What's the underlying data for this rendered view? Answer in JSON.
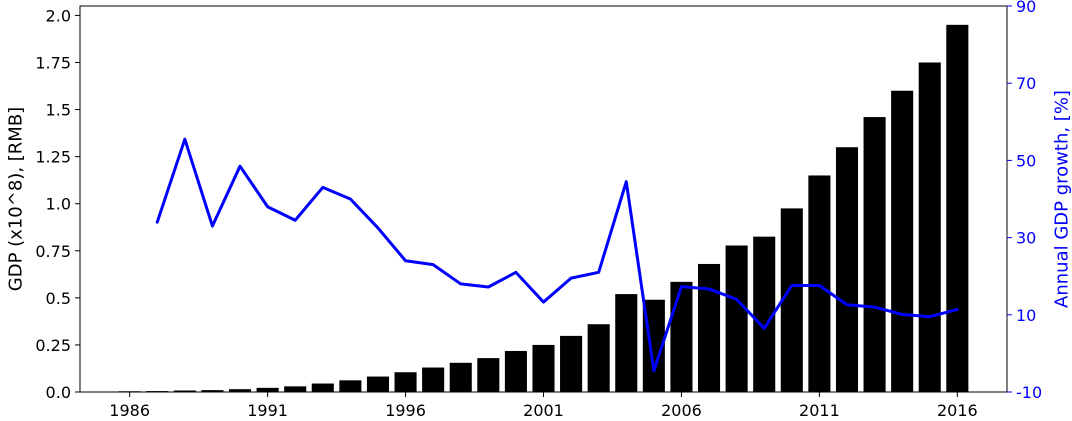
{
  "chart_data": {
    "type": "bar",
    "colors": {
      "bars": "#000000",
      "line": "#0000ff",
      "right_axis": "#0000ff",
      "left_axis": "#000000"
    },
    "xlabel": "",
    "x_ticks": [
      1986,
      1991,
      1996,
      2001,
      2006,
      2011,
      2016
    ],
    "xlim": [
      1984.2,
      2017.8
    ],
    "left_axis": {
      "label": "GDP (x10^8), [RMB]",
      "ylim": [
        0,
        2.05
      ],
      "ticks": [
        {
          "value": 0,
          "label": "0.0"
        },
        {
          "value": 0.25,
          "label": "0.25"
        },
        {
          "value": 0.5,
          "label": "0.5"
        },
        {
          "value": 0.75,
          "label": "0.75"
        },
        {
          "value": 1.0,
          "label": "1.0"
        },
        {
          "value": 1.25,
          "label": "1.25"
        },
        {
          "value": 1.5,
          "label": "1.5"
        },
        {
          "value": 1.75,
          "label": "1.75"
        },
        {
          "value": 2.0,
          "label": "2.0"
        }
      ]
    },
    "right_axis": {
      "label": "Annual GDP growth, [%]",
      "ylim": [
        -10,
        90
      ],
      "ticks": [
        {
          "value": -10,
          "label": "-10"
        },
        {
          "value": 10,
          "label": "10"
        },
        {
          "value": 30,
          "label": "30"
        },
        {
          "value": 50,
          "label": "50"
        },
        {
          "value": 70,
          "label": "70"
        },
        {
          "value": 90,
          "label": "90"
        }
      ]
    },
    "series": [
      {
        "type": "bar",
        "axis": "left",
        "x": [
          1986,
          1987,
          1988,
          1989,
          1990,
          1991,
          1992,
          1993,
          1994,
          1995,
          1996,
          1997,
          1998,
          1999,
          2000,
          2001,
          2002,
          2003,
          2004,
          2005,
          2006,
          2007,
          2008,
          2009,
          2010,
          2011,
          2012,
          2013,
          2014,
          2015,
          2016
        ],
        "values": [
          0.004,
          0.005,
          0.008,
          0.01,
          0.015,
          0.022,
          0.03,
          0.045,
          0.062,
          0.082,
          0.105,
          0.13,
          0.155,
          0.18,
          0.218,
          0.25,
          0.298,
          0.36,
          0.52,
          0.49,
          0.585,
          0.68,
          0.778,
          0.825,
          0.975,
          1.15,
          1.3,
          1.46,
          1.6,
          1.75,
          1.95
        ]
      },
      {
        "type": "line",
        "axis": "right",
        "x": [
          1987,
          1988,
          1989,
          1990,
          1991,
          1992,
          1993,
          1994,
          1995,
          1996,
          1997,
          1998,
          1999,
          2000,
          2001,
          2002,
          2003,
          2004,
          2005,
          2006,
          2007,
          2008,
          2009,
          2010,
          2011,
          2012,
          2013,
          2014,
          2015,
          2016
        ],
        "values": [
          34,
          55.5,
          33,
          48.5,
          38,
          34.5,
          43,
          40,
          32.5,
          24,
          23,
          18,
          17.2,
          21,
          13.3,
          19.5,
          21,
          44.5,
          -4.5,
          17.3,
          16.7,
          14,
          6.5,
          17.6,
          17.6,
          12.6,
          12,
          10.1,
          9.5,
          11.4
        ]
      }
    ]
  }
}
